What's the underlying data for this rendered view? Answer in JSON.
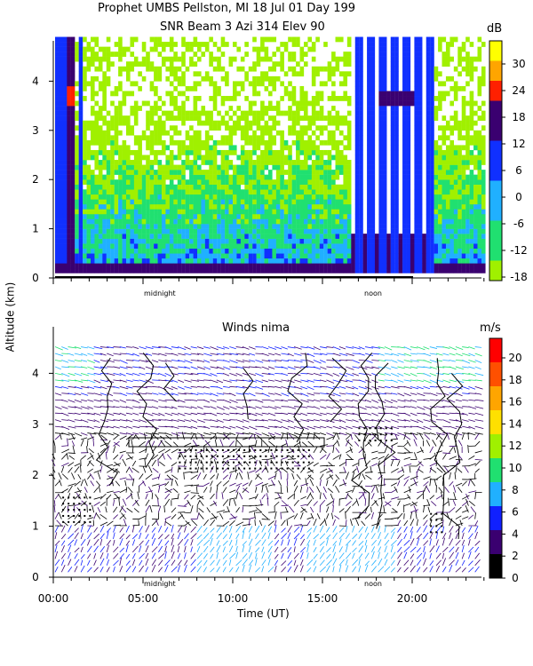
{
  "chart_data": [
    {
      "type": "heatmap",
      "title": "Prophet  UMBS Pellston, MI  18 Jul 01 Day 199",
      "subtitle": "SNR Beam 3 Azi 314 Elev 90",
      "ylabel": "Altitude (km)",
      "ylim": [
        0,
        4.9
      ],
      "yticks": [
        "0",
        "1",
        "2",
        "3",
        "4"
      ],
      "xmarks": [
        "midnight",
        "noon"
      ],
      "colorbar": {
        "unit": "dB",
        "ticks": [
          "30",
          "24",
          "18",
          "12",
          "6",
          "0",
          "-6",
          "-12",
          "-18"
        ],
        "colors": [
          "#ffff00",
          "#ffa500",
          "#ff2000",
          "#3a0070",
          "#3a0070",
          "#1030ff",
          "#1030ff",
          "#20b0ff",
          "#20b0ff",
          "#20e070",
          "#20e070",
          "#a0f000"
        ]
      }
    },
    {
      "type": "vector",
      "title": "Winds nima",
      "xlabel": "Time (UT)",
      "ylabel": "Altitude (km)",
      "xlim": [
        0,
        24
      ],
      "ylim": [
        0,
        4.7
      ],
      "xticks": [
        "00:00",
        "05:00",
        "10:00",
        "15:00",
        "20:00"
      ],
      "yticks": [
        "0",
        "1",
        "2",
        "3",
        "4"
      ],
      "xmarks": [
        "midnight",
        "noon"
      ],
      "colorbar": {
        "unit": "m/s",
        "ticks": [
          "20",
          "18",
          "16",
          "14",
          "12",
          "10",
          "8",
          "6",
          "4",
          "2",
          "0"
        ],
        "colors": [
          "#000000",
          "#3a0070",
          "#1020ff",
          "#20b0ff",
          "#20e070",
          "#a0f000",
          "#ffe000",
          "#ffa500",
          "#ff5000",
          "#ff0000"
        ]
      }
    }
  ]
}
